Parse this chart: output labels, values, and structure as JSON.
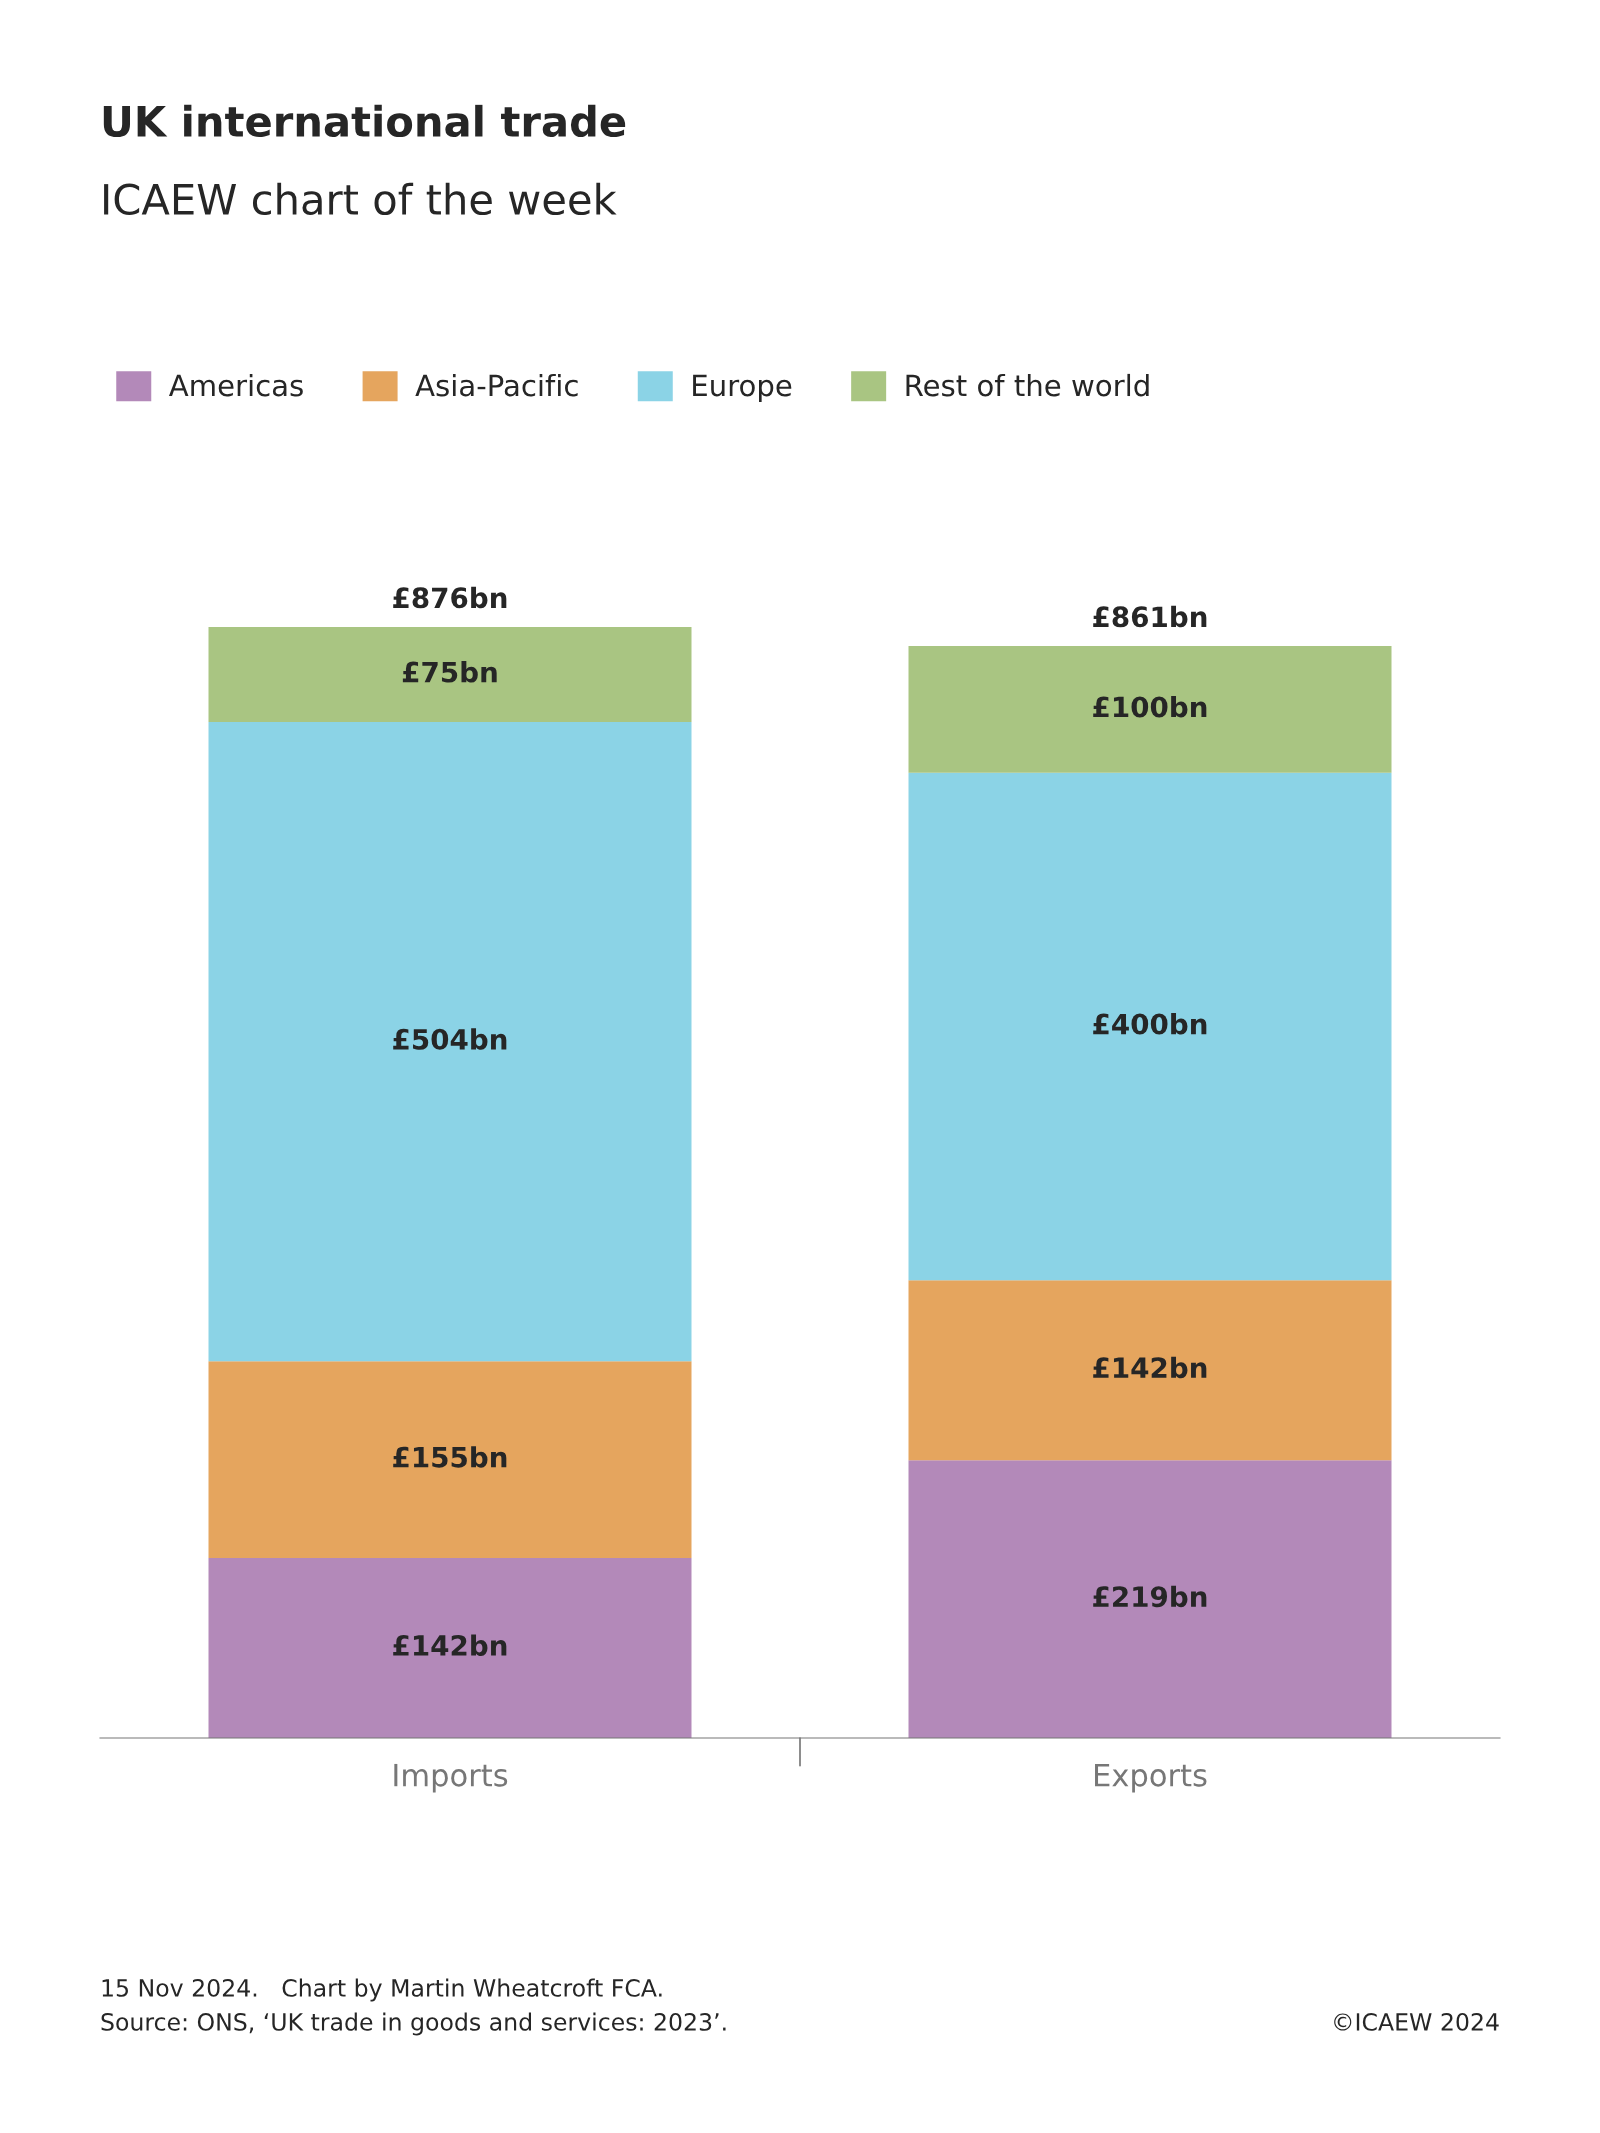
{
  "chart_data": {
    "type": "bar",
    "title": "UK international trade",
    "subtitle": "ICAEW chart of the week",
    "categories": [
      "Imports",
      "Exports"
    ],
    "stacked": true,
    "legend": "top left",
    "grid": false,
    "series": [
      {
        "name": "Americas",
        "color": "#b389b9",
        "values": [
          142,
          219
        ],
        "value_labels": [
          "£142bn",
          "£219bn"
        ]
      },
      {
        "name": "Asia-Pacific",
        "color": "#e5a55e",
        "values": [
          155,
          142
        ],
        "value_labels": [
          "£155bn",
          "£142bn"
        ]
      },
      {
        "name": "Europe",
        "color": "#8bd3e6",
        "values": [
          504,
          400
        ],
        "value_labels": [
          "£504bn",
          "£400bn"
        ]
      },
      {
        "name": "Rest of the world",
        "color": "#a9c582",
        "values": [
          75,
          100
        ],
        "value_labels": [
          "£75bn",
          "£100bn"
        ]
      }
    ],
    "totals": [
      "£876bn",
      "£861bn"
    ],
    "annotations": [
      "15 Nov 2024.   Chart by Martin Wheatcroft FCA.",
      "Source: ONS, ‘UK trade in goods and services: 2023’.",
      "©ICAEW 2024"
    ]
  }
}
